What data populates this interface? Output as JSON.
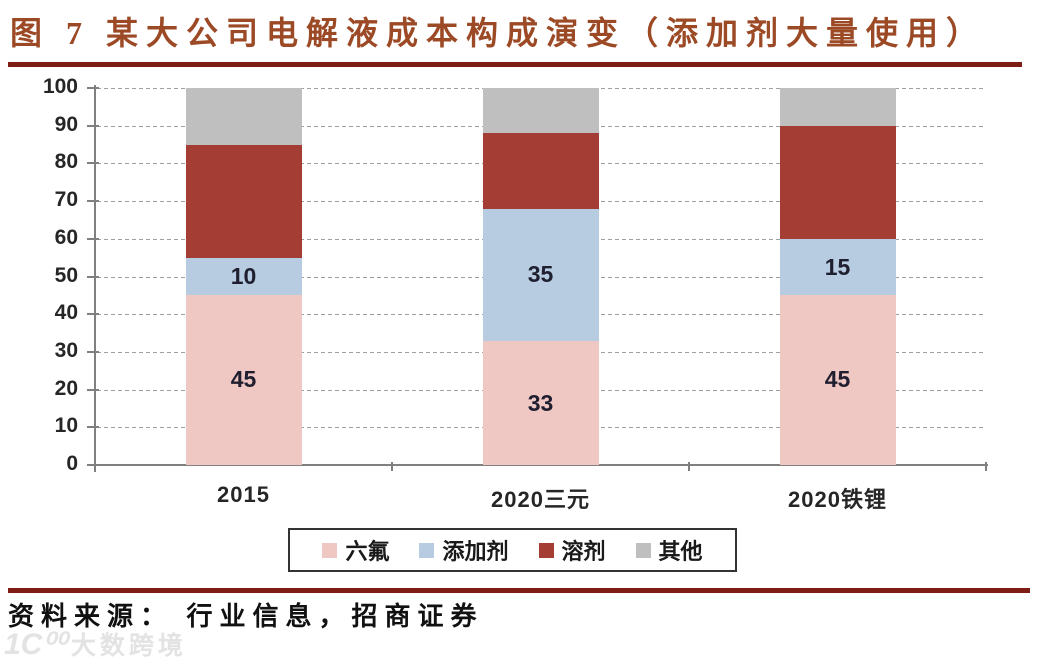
{
  "title": "图 7  某大公司电解液成本构成演变（添加剂大量使用）",
  "source_label": "资料来源： 行业信息，招商证券",
  "watermark": {
    "logo": "1C⁰⁰",
    "text": "大数跨境"
  },
  "colors": {
    "title": "#9c4a26",
    "rule": "#7d1d14",
    "pink": "#efc7c3",
    "blue": "#b7cce1",
    "red": "#a43d34",
    "gray": "#c0bfbf",
    "axis": "#808080",
    "grid": "#9f9f9f",
    "value_label": "#1f1f30",
    "tick_label": "#262626"
  },
  "chart_data": {
    "type": "bar",
    "stacked": true,
    "title": "某大公司电解液成本构成演变（添加剂大量使用）",
    "categories": [
      "2015",
      "2020三元",
      "2020铁锂"
    ],
    "series": [
      {
        "name": "六氟",
        "color_key": "pink",
        "values": [
          45,
          33,
          45
        ],
        "labels": [
          "45",
          "33",
          "45"
        ]
      },
      {
        "name": "添加剂",
        "color_key": "blue",
        "values": [
          10,
          35,
          15
        ],
        "labels": [
          "10",
          "35",
          "15"
        ]
      },
      {
        "name": "溶剂",
        "color_key": "red",
        "values": [
          30,
          20,
          30
        ],
        "labels": [
          null,
          null,
          null
        ]
      },
      {
        "name": "其他",
        "color_key": "gray",
        "values": [
          15,
          12,
          10
        ],
        "labels": [
          null,
          null,
          null
        ]
      }
    ],
    "xlabel": "",
    "ylabel": "",
    "ylim": [
      0,
      100
    ],
    "yticks": [
      0,
      10,
      20,
      30,
      40,
      50,
      60,
      70,
      80,
      90,
      100
    ],
    "grid": "horizontal-dashed",
    "legend_position": "bottom"
  }
}
